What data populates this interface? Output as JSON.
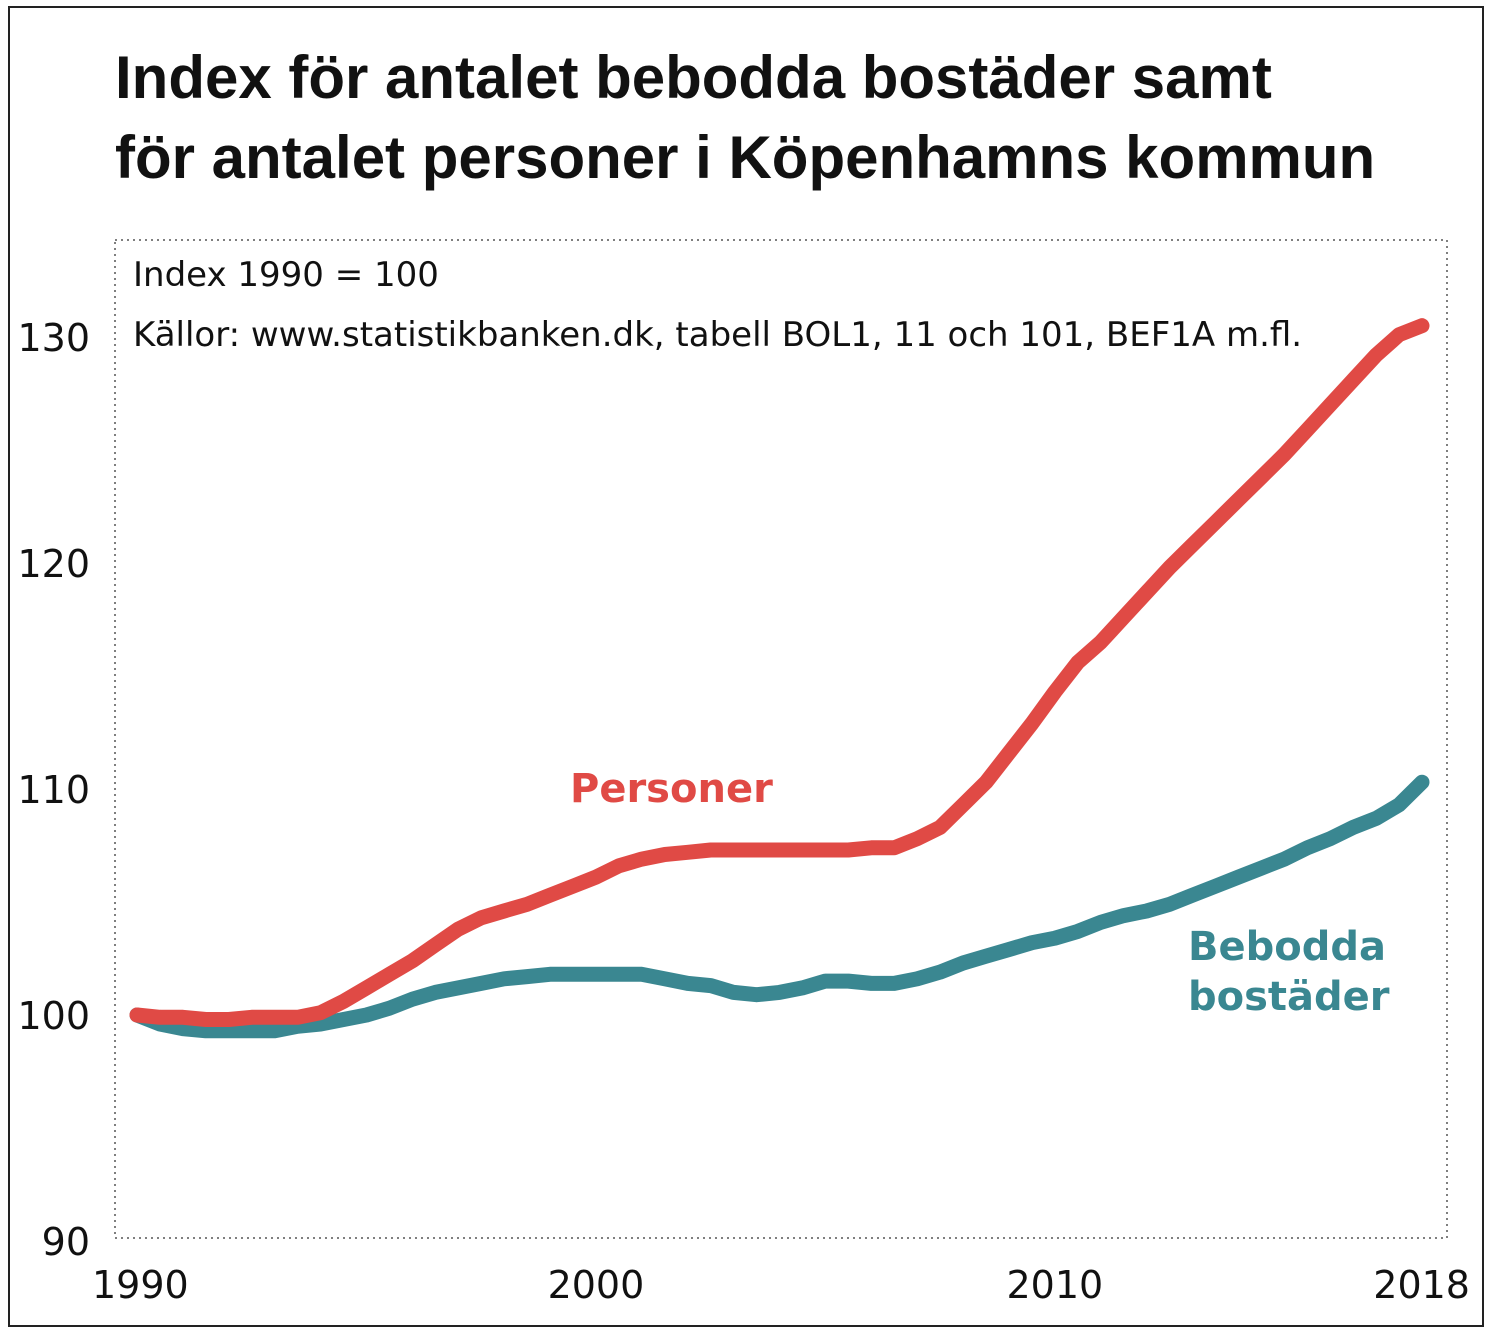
{
  "title_lines": [
    "Index för antalet bebodda bostäder samt",
    "för antalet personer i Köpenhamns kommun"
  ],
  "chart_data": {
    "type": "line",
    "title": "Index för antalet bebodda bostäder samt för antalet personer i Köpenhamns kommun",
    "annotations": [
      "Index 1990 = 100",
      "Källor: www.statistikbanken.dk, tabell BOL1, 11 och 101, BEF1A m.fl."
    ],
    "x_ticks": [
      "1990",
      "2000",
      "2010",
      "2018"
    ],
    "y_ticks": [
      "130",
      "120",
      "110",
      "100",
      "90"
    ],
    "xlim": [
      1990,
      2018.5
    ],
    "ylim": [
      90,
      135
    ],
    "grid": false,
    "series": [
      {
        "name": "Personer",
        "label_lines": [
          "Personer"
        ],
        "color": "#e04a45",
        "x": [
          1990,
          1990.5,
          1991,
          1991.5,
          1992,
          1992.5,
          1993,
          1993.5,
          1994,
          1994.5,
          1995,
          1995.5,
          1996,
          1996.5,
          1997,
          1997.5,
          1998,
          1998.5,
          1999,
          1999.5,
          2000,
          2000.5,
          2001,
          2001.5,
          2002,
          2002.5,
          2003,
          2003.5,
          2004,
          2004.5,
          2005,
          2005.5,
          2006,
          2006.5,
          2007,
          2007.5,
          2008,
          2008.5,
          2009,
          2009.5,
          2010,
          2010.5,
          2011,
          2011.5,
          2012,
          2012.5,
          2013,
          2013.5,
          2014,
          2014.5,
          2015,
          2015.5,
          2016,
          2016.5,
          2017,
          2017.5,
          2018
        ],
        "values": [
          100.0,
          99.9,
          99.9,
          99.8,
          99.8,
          99.9,
          99.9,
          99.9,
          100.1,
          100.6,
          101.2,
          101.8,
          102.4,
          103.1,
          103.8,
          104.3,
          104.6,
          104.9,
          105.3,
          105.7,
          106.1,
          106.6,
          106.9,
          107.1,
          107.2,
          107.3,
          107.3,
          107.3,
          107.3,
          107.3,
          107.3,
          107.3,
          107.4,
          107.4,
          107.8,
          108.3,
          109.3,
          110.3,
          111.6,
          112.9,
          114.3,
          115.6,
          116.5,
          117.6,
          118.7,
          119.8,
          120.8,
          121.8,
          122.8,
          123.8,
          124.8,
          125.9,
          127.0,
          128.1,
          129.2,
          130.1,
          130.5
        ]
      },
      {
        "name": "Bebodda bostäder",
        "label_lines": [
          "Bebodda",
          "bostäder"
        ],
        "color": "#3a8791",
        "x": [
          1990,
          1990.5,
          1991,
          1991.5,
          1992,
          1992.5,
          1993,
          1993.5,
          1994,
          1994.5,
          1995,
          1995.5,
          1996,
          1996.5,
          1997,
          1997.5,
          1998,
          1998.5,
          1999,
          1999.5,
          2000,
          2000.5,
          2001,
          2001.5,
          2002,
          2002.5,
          2003,
          2003.5,
          2004,
          2004.5,
          2005,
          2005.5,
          2006,
          2006.5,
          2007,
          2007.5,
          2008,
          2008.5,
          2009,
          2009.5,
          2010,
          2010.5,
          2011,
          2011.5,
          2012,
          2012.5,
          2013,
          2013.5,
          2014,
          2014.5,
          2015,
          2015.5,
          2016,
          2016.5,
          2017,
          2017.5,
          2018
        ],
        "values": [
          100.0,
          99.6,
          99.4,
          99.3,
          99.3,
          99.3,
          99.3,
          99.5,
          99.6,
          99.8,
          100.0,
          100.3,
          100.7,
          101.0,
          101.2,
          101.4,
          101.6,
          101.7,
          101.8,
          101.8,
          101.8,
          101.8,
          101.8,
          101.6,
          101.4,
          101.3,
          101.0,
          100.9,
          101.0,
          101.2,
          101.5,
          101.5,
          101.4,
          101.4,
          101.6,
          101.9,
          102.3,
          102.6,
          102.9,
          103.2,
          103.4,
          103.7,
          104.1,
          104.4,
          104.6,
          104.9,
          105.3,
          105.7,
          106.1,
          106.5,
          106.9,
          107.4,
          107.8,
          108.3,
          108.7,
          109.3,
          110.3
        ]
      }
    ]
  }
}
